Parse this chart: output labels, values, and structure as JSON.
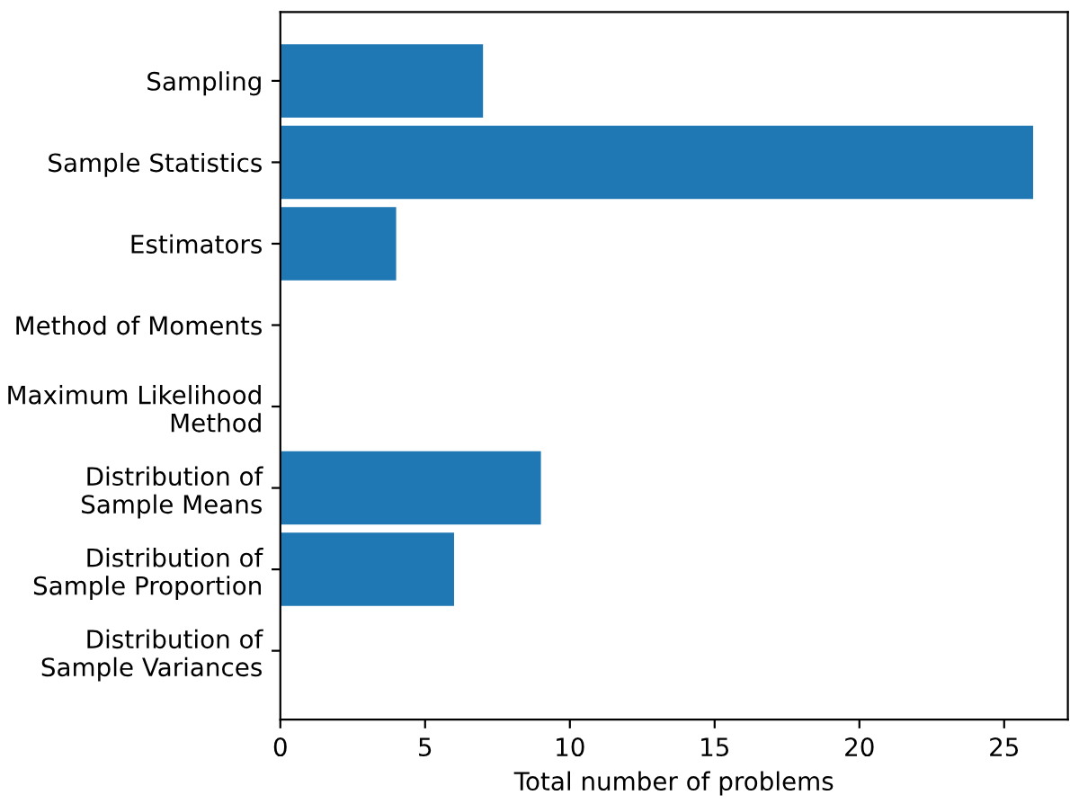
{
  "chart_data": {
    "type": "bar",
    "orientation": "horizontal",
    "xlabel": "Total number of problems",
    "categories": [
      "Sampling",
      "Sample Statistics",
      "Estimators",
      "Method of Moments",
      "Maximum Likelihood\nMethod",
      "Distribution of\nSample Means",
      "Distribution of\nSample Proportion",
      "Distribution of\nSample Variances"
    ],
    "values": [
      7,
      26,
      4,
      0,
      0,
      9,
      6,
      0
    ],
    "color": "#1f77b4",
    "xlim": [
      0,
      27.2
    ],
    "xticks": [
      0,
      5,
      10,
      15,
      20,
      25
    ],
    "grid": false,
    "legend": false
  }
}
